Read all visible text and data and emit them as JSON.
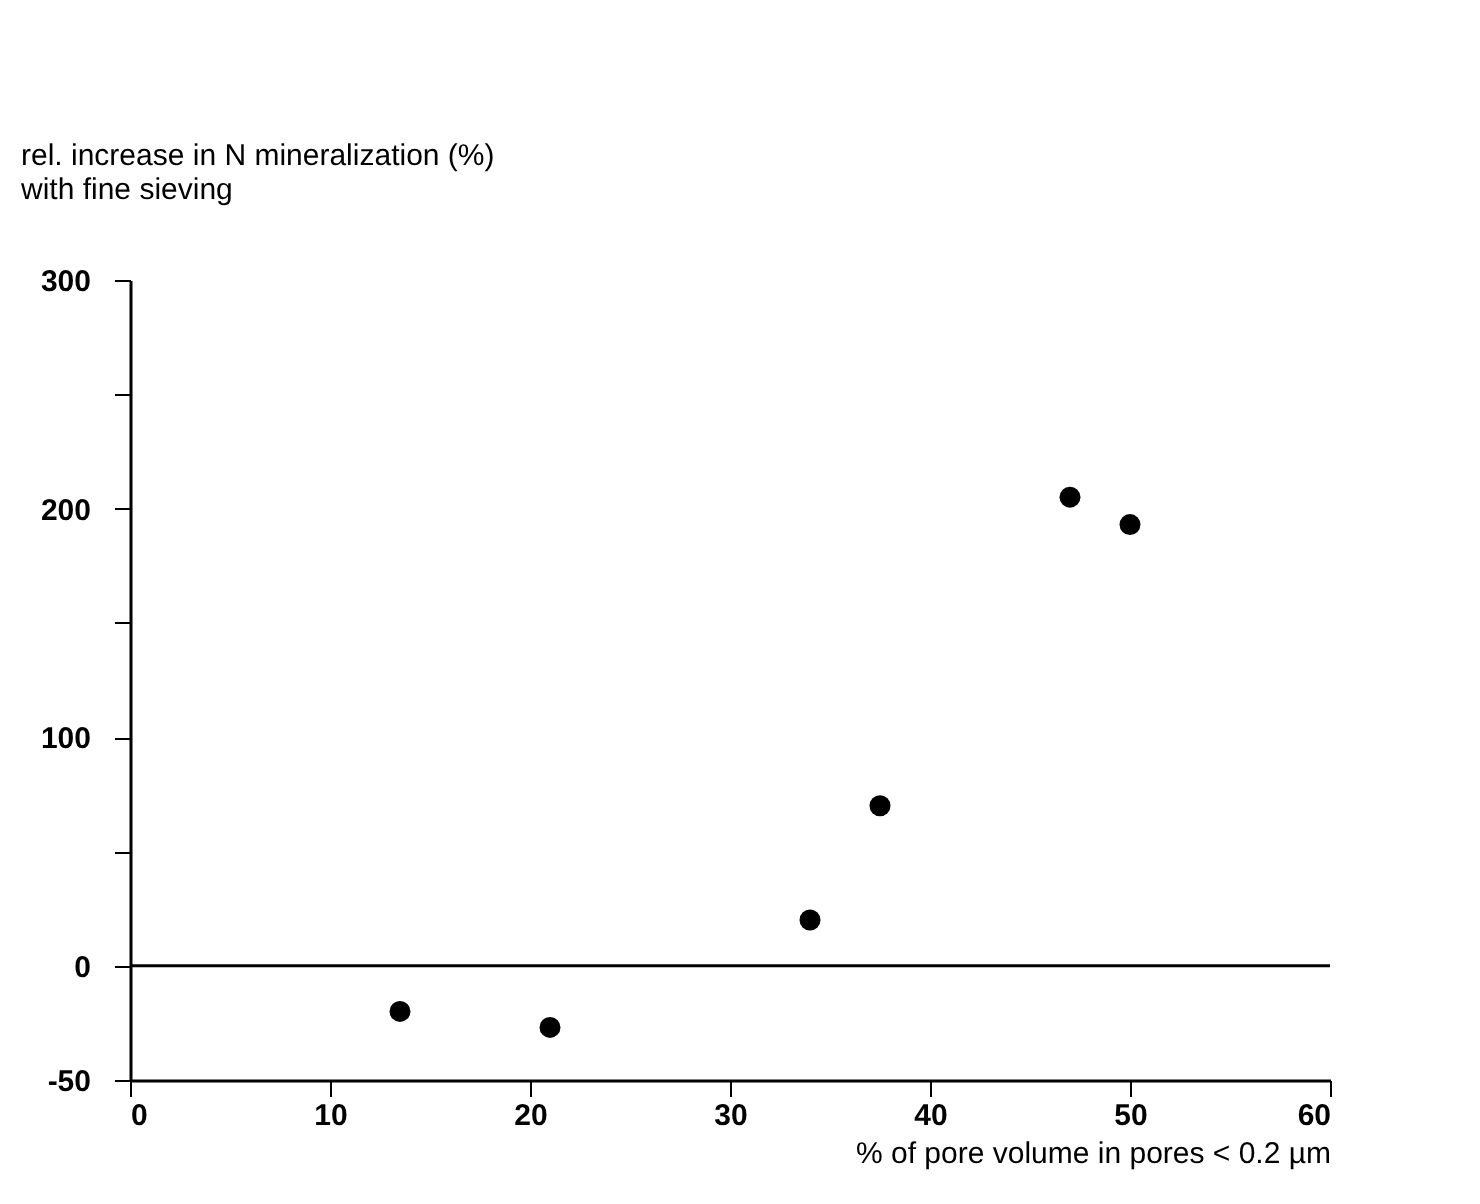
{
  "chart_data": {
    "type": "scatter",
    "ylabel": "rel. increase in N mineralization (%)\nwith fine sieving",
    "xlabel": "% of pore volume in pores < 0.2 µm",
    "x": [
      13.5,
      21,
      34,
      37.5,
      47,
      50
    ],
    "values": [
      -20,
      -27,
      20,
      70,
      205,
      193
    ],
    "color": "#000000",
    "marker": "circle",
    "xlim": [
      0,
      60
    ],
    "xticks": [
      0,
      10,
      20,
      30,
      40,
      50,
      60
    ],
    "ylim": [
      -50,
      300
    ],
    "yticks": [
      -50,
      0,
      {
        "value": 50,
        "label": null
      },
      100,
      {
        "value": 150,
        "label": null
      },
      200,
      {
        "value": 250,
        "label": null
      },
      300
    ],
    "ref_lines": [
      {
        "axis": "y",
        "value": 0,
        "color": "#000000"
      }
    ],
    "grid": false
  }
}
